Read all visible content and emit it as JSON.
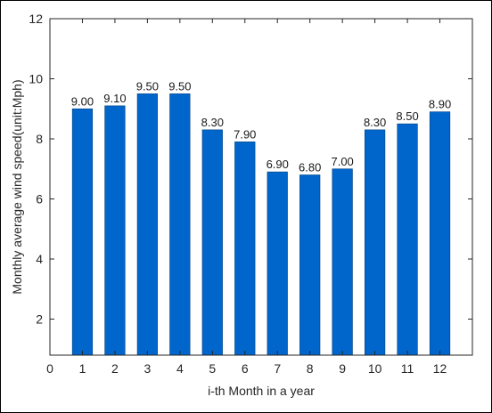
{
  "chart_data": {
    "type": "bar",
    "categories": [
      "1",
      "2",
      "3",
      "4",
      "5",
      "6",
      "7",
      "8",
      "9",
      "10",
      "11",
      "12"
    ],
    "values": [
      9.0,
      9.1,
      9.5,
      9.5,
      8.3,
      7.9,
      6.9,
      6.8,
      7.0,
      8.3,
      8.5,
      8.9
    ],
    "data_labels": [
      "9.00",
      "9.10",
      "9.50",
      "9.50",
      "8.30",
      "7.90",
      "6.90",
      "6.80",
      "7.00",
      "8.30",
      "8.50",
      "8.90"
    ],
    "xlabel": "i-th Month in a year",
    "ylabel": "Monthly average wind speed(unit:Mph)",
    "x_ticks": [
      "0",
      "1",
      "2",
      "3",
      "4",
      "5",
      "6",
      "7",
      "8",
      "9",
      "10",
      "11",
      "12"
    ],
    "y_ticks": [
      "2",
      "4",
      "6",
      "8",
      "10",
      "12"
    ],
    "xlim": [
      0,
      13
    ],
    "ylim": [
      0.8,
      12
    ],
    "grid": false,
    "bar_color": "#0066cc"
  }
}
